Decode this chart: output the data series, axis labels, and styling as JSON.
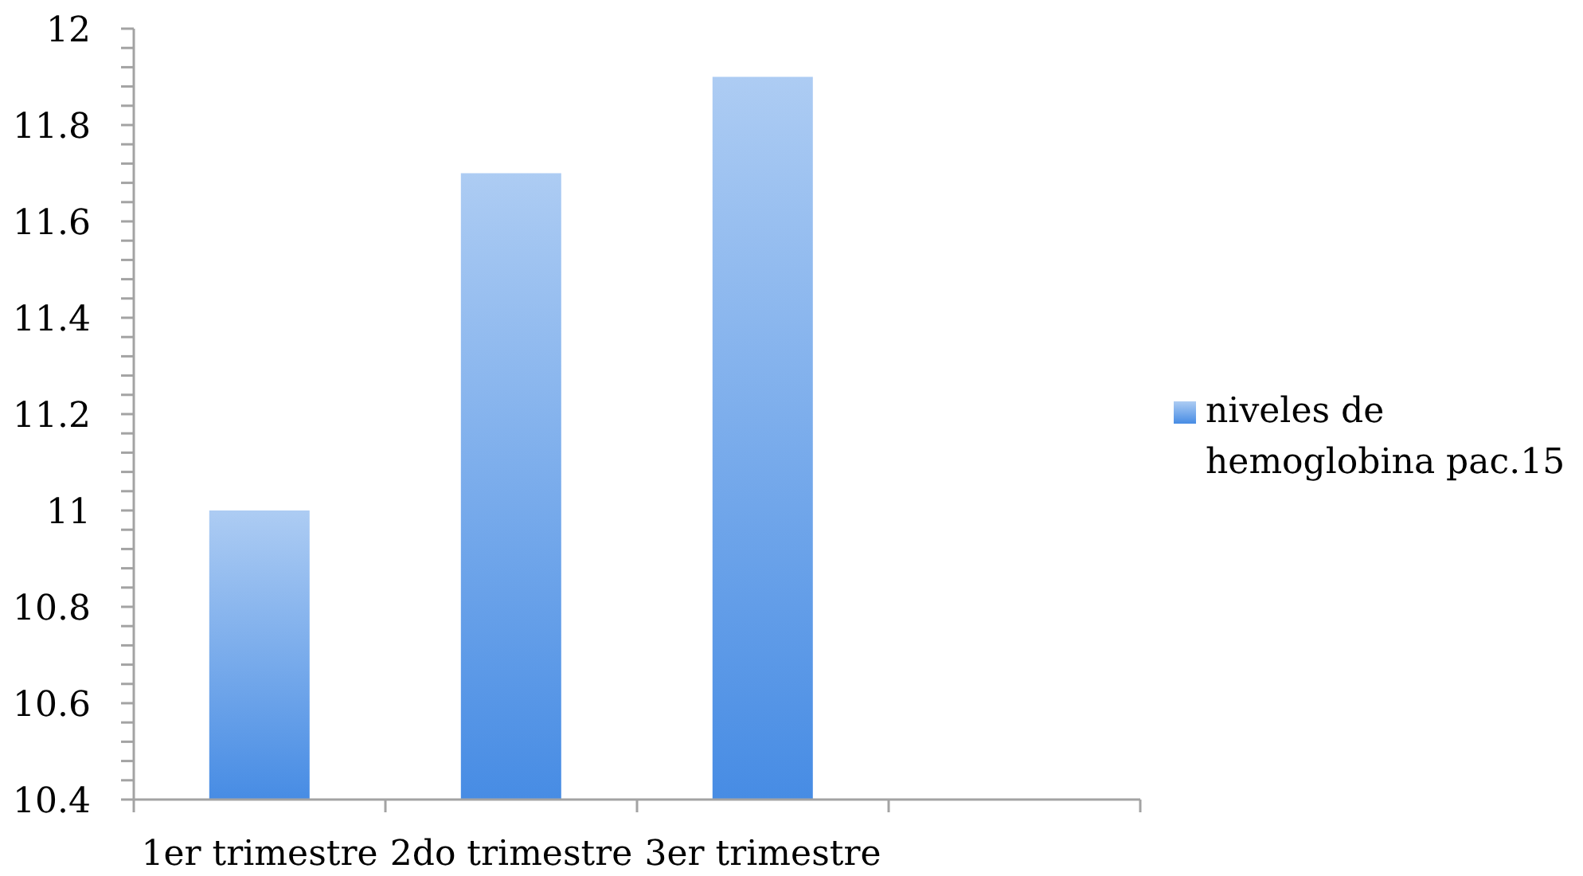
{
  "chart_data": {
    "type": "bar",
    "categories": [
      "1er trimestre",
      "2do trimestre",
      "3er trimestre",
      null
    ],
    "series": [
      {
        "name": "niveles de hemoglobina pac.15",
        "color": "#77aaeb",
        "values": [
          11,
          11.7,
          11.9,
          null
        ]
      }
    ],
    "ylim": [
      10.4,
      12
    ],
    "yticks": [
      10.4,
      {
        "value": 10.44,
        "label": null
      },
      {
        "value": 10.48,
        "label": null
      },
      {
        "value": 10.52,
        "label": null
      },
      {
        "value": 10.56,
        "label": null
      },
      10.6,
      {
        "value": 10.64,
        "label": null
      },
      {
        "value": 10.68,
        "label": null
      },
      {
        "value": 10.72,
        "label": null
      },
      {
        "value": 10.76,
        "label": null
      },
      10.8,
      {
        "value": 10.84,
        "label": null
      },
      {
        "value": 10.88,
        "label": null
      },
      {
        "value": 10.92,
        "label": null
      },
      {
        "value": 10.96,
        "label": null
      },
      11,
      {
        "value": 11.04,
        "label": null
      },
      {
        "value": 11.08,
        "label": null
      },
      {
        "value": 11.12,
        "label": null
      },
      {
        "value": 11.16,
        "label": null
      },
      11.2,
      {
        "value": 11.24,
        "label": null
      },
      {
        "value": 11.28,
        "label": null
      },
      {
        "value": 11.32,
        "label": null
      },
      {
        "value": 11.36,
        "label": null
      },
      11.4,
      {
        "value": 11.44,
        "label": null
      },
      {
        "value": 11.48,
        "label": null
      },
      {
        "value": 11.52,
        "label": null
      },
      {
        "value": 11.56,
        "label": null
      },
      11.6,
      {
        "value": 11.64,
        "label": null
      },
      {
        "value": 11.68,
        "label": null
      },
      {
        "value": 11.72,
        "label": null
      },
      {
        "value": 11.76,
        "label": null
      },
      11.8,
      {
        "value": 11.84,
        "label": null
      },
      {
        "value": 11.88,
        "label": null
      },
      {
        "value": 11.92,
        "label": null
      },
      {
        "value": 11.96,
        "label": null
      },
      12
    ],
    "legend": "right"
  }
}
